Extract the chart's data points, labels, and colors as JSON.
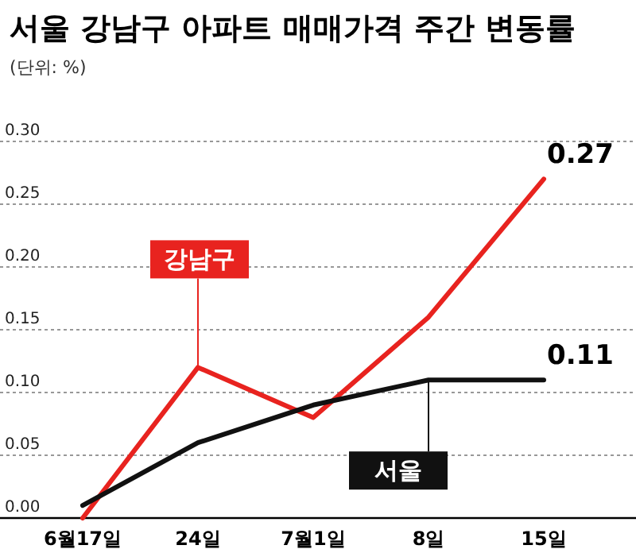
{
  "chart_data": {
    "type": "line",
    "title": "서울 강남구 아파트 매매가격 주간 변동률",
    "subtitle": "(단위: %)",
    "categories": [
      "6월17일",
      "24일",
      "7월1일",
      "8일",
      "15일"
    ],
    "series": [
      {
        "name": "강남구",
        "color": "#e8231f",
        "values": [
          0.0,
          0.12,
          0.08,
          0.16,
          0.27
        ],
        "value_labels": [
          null,
          null,
          null,
          null,
          "0.27"
        ]
      },
      {
        "name": "서울",
        "color": "#111111",
        "values": [
          0.01,
          0.06,
          0.09,
          0.11,
          0.11
        ],
        "value_labels": [
          null,
          null,
          null,
          null,
          "0.11"
        ]
      }
    ],
    "ylim": [
      0,
      0.3
    ],
    "yticks": [
      {
        "value": 0,
        "label": "0.00"
      },
      {
        "value": 0.05,
        "label": "0.05"
      },
      {
        "value": 0.1,
        "label": "0.10"
      },
      {
        "value": 0.15,
        "label": "0.15"
      },
      {
        "value": 0.2,
        "label": "0.20"
      },
      {
        "value": 0.25,
        "label": "0.25"
      },
      {
        "value": 0.3,
        "label": "0.30"
      }
    ],
    "grid": "y",
    "legend": false,
    "marker": "none",
    "line_style": "solid"
  }
}
